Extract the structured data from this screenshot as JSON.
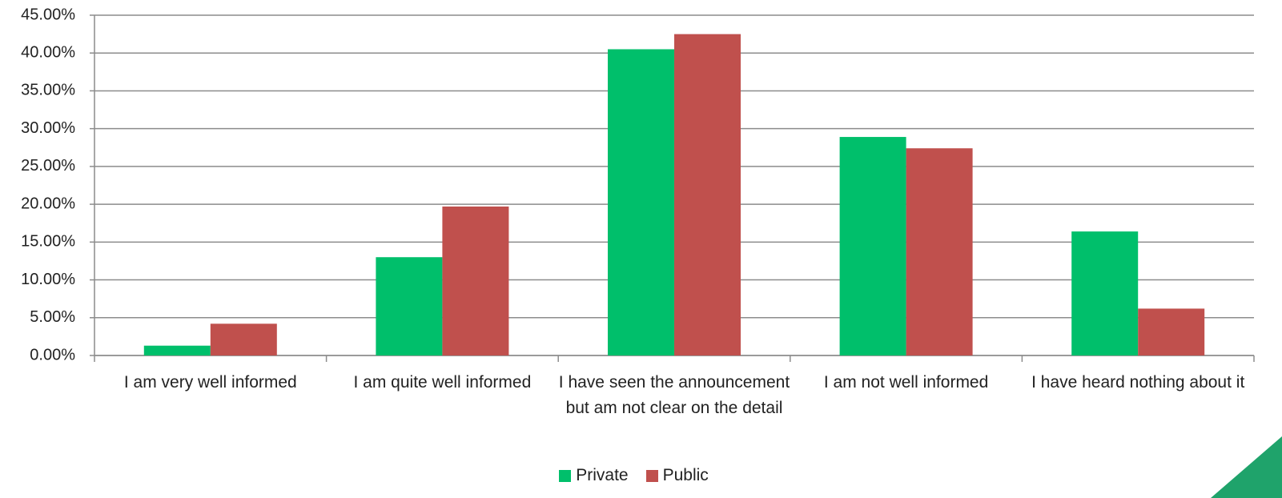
{
  "chart_data": {
    "type": "bar",
    "categories": [
      "I am very well informed",
      "I am quite well informed",
      "I have seen the announcement but am not clear on the detail",
      "I am not well informed",
      "I have heard nothing about it"
    ],
    "series": [
      {
        "name": "Private",
        "color": "#00bf6b",
        "values": [
          1.3,
          13.0,
          40.5,
          28.9,
          16.4
        ]
      },
      {
        "name": "Public",
        "color": "#c0504d",
        "values": [
          4.2,
          19.7,
          42.5,
          27.4,
          6.2
        ]
      }
    ],
    "ylim": [
      0,
      45
    ],
    "yticks": [
      {
        "value": 0,
        "label": "0.00%"
      },
      {
        "value": 5,
        "label": "5.00%"
      },
      {
        "value": 10,
        "label": "10.00%"
      },
      {
        "value": 15,
        "label": "15.00%"
      },
      {
        "value": 20,
        "label": "20.00%"
      },
      {
        "value": 25,
        "label": "25.00%"
      },
      {
        "value": 30,
        "label": "30.00%"
      },
      {
        "value": 35,
        "label": "35.00%"
      },
      {
        "value": 40,
        "label": "40.00%"
      },
      {
        "value": 45,
        "label": "45.00%"
      }
    ],
    "grid": true,
    "legend": "bottom"
  }
}
